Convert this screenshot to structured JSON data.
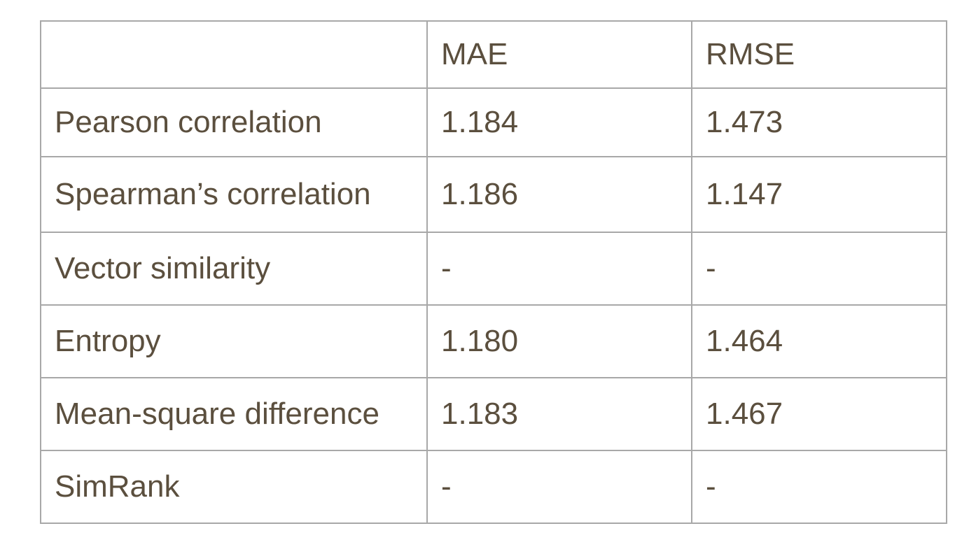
{
  "table": {
    "header": [
      "",
      "MAE",
      "RMSE"
    ],
    "rows": [
      [
        "Pearson correlation",
        "1.184",
        "1.473"
      ],
      [
        "Spearman’s correlation",
        "1.186",
        "1.147"
      ],
      [
        "Vector similarity",
        "-",
        "-"
      ],
      [
        "Entropy",
        "1.180",
        "1.464"
      ],
      [
        "Mean-square difference",
        "1.183",
        "1.467"
      ],
      [
        "SimRank",
        "-",
        "-"
      ]
    ]
  }
}
